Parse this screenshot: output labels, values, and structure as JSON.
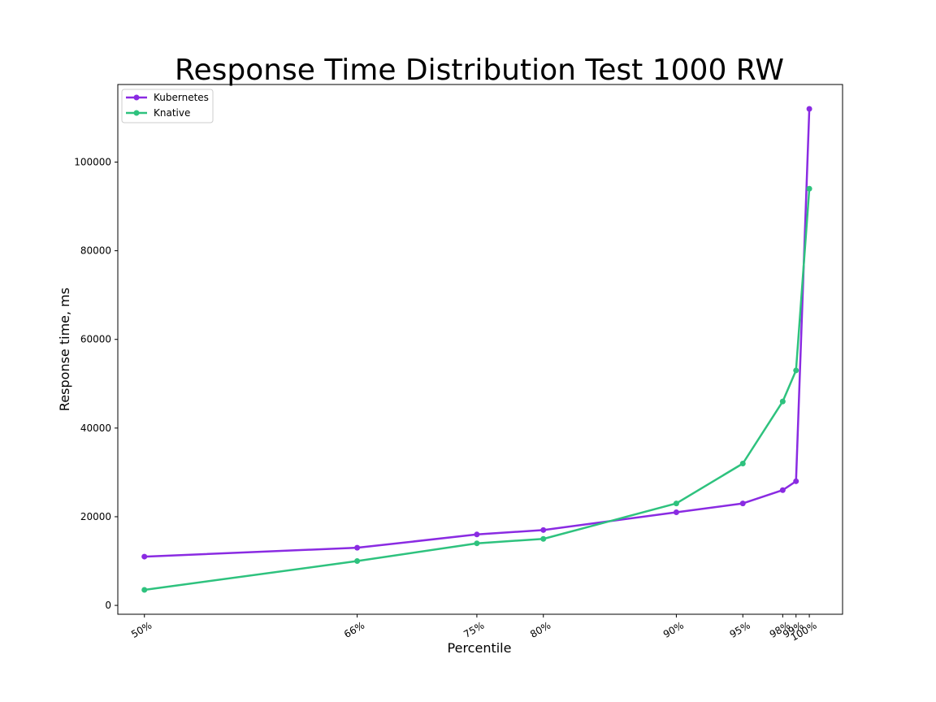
{
  "chart_data": {
    "type": "line",
    "title": "Response Time Distribution Test 1000 RW",
    "xlabel": "Percentile",
    "ylabel": "Response time, ms",
    "x": [
      50,
      66,
      75,
      80,
      90,
      95,
      98,
      99,
      100
    ],
    "x_tick_labels": [
      "50%",
      "66%",
      "75%",
      "80%",
      "90%",
      "95%",
      "98%",
      "99%",
      "100%"
    ],
    "y_ticks": [
      0,
      20000,
      40000,
      60000,
      80000,
      100000
    ],
    "ylim": [
      -2000,
      117500
    ],
    "xlim": [
      48,
      102.5
    ],
    "grid": false,
    "legend_position": "top-left",
    "series": [
      {
        "name": "Kubernetes",
        "color": "#8a2be2",
        "values": [
          11000,
          13000,
          16000,
          17000,
          21000,
          23000,
          26000,
          28000,
          112000
        ]
      },
      {
        "name": "Knative",
        "color": "#2ec27e",
        "values": [
          3500,
          10000,
          14000,
          15000,
          23000,
          32000,
          46000,
          53000,
          94000
        ]
      }
    ]
  }
}
